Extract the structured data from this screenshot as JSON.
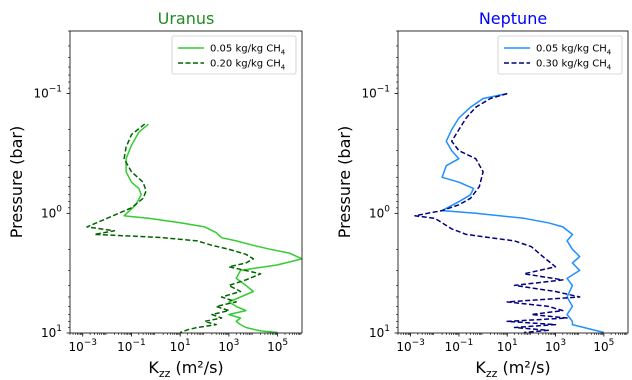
{
  "chart_data": [
    {
      "type": "line",
      "title": "Uranus",
      "title_color": "#228b22",
      "xlabel": "K",
      "xlabel_sub": "zz",
      "xlabel_unit": " (m²/s)",
      "ylabel": "Pressure (bar)",
      "x_scale": "log",
      "y_scale": "log",
      "y_inverted": true,
      "xlim": [
        0.0003,
        1000000
      ],
      "ylim": [
        10,
        0.03
      ],
      "x_ticks": [
        {
          "value": 0.001,
          "base": "10",
          "exp": "−3"
        },
        {
          "value": 0.1,
          "base": "10",
          "exp": "−1"
        },
        {
          "value": 10,
          "base": "10",
          "exp": "1"
        },
        {
          "value": 1000,
          "base": "10",
          "exp": "3"
        },
        {
          "value": 100000,
          "base": "10",
          "exp": "5"
        }
      ],
      "y_ticks": [
        {
          "value": 0.1,
          "base": "10",
          "exp": "−1"
        },
        {
          "value": 1,
          "base": "10",
          "exp": "0"
        },
        {
          "value": 10,
          "base": "10",
          "exp": "1"
        }
      ],
      "legend_position": "top-right",
      "series": [
        {
          "name": "0.05 kg/kg CH",
          "name_sub": "4",
          "color": "#32cd32",
          "dash": "solid",
          "points": [
            [
              0.5,
              0.18
            ],
            [
              0.2,
              0.21
            ],
            [
              0.1,
              0.27
            ],
            [
              0.06,
              0.35
            ],
            [
              0.06,
              0.45
            ],
            [
              0.1,
              0.55
            ],
            [
              0.2,
              0.62
            ],
            [
              0.25,
              0.7
            ],
            [
              0.15,
              0.85
            ],
            [
              0.05,
              1.05
            ],
            [
              0.5,
              1.1
            ],
            [
              10,
              1.2
            ],
            [
              100,
              1.3
            ],
            [
              300,
              1.45
            ],
            [
              500,
              1.6
            ],
            [
              2000,
              1.7
            ],
            [
              10000,
              1.85
            ],
            [
              50000,
              2.0
            ],
            [
              300000,
              2.15
            ],
            [
              1000000,
              2.4
            ],
            [
              100000,
              2.7
            ],
            [
              3000,
              3.0
            ],
            [
              2000,
              3.5
            ],
            [
              5000,
              4.0
            ],
            [
              10000,
              4.5
            ],
            [
              3000,
              5.0
            ],
            [
              1000,
              5.5
            ],
            [
              2000,
              6.0
            ],
            [
              5000,
              6.5
            ],
            [
              1000,
              7.0
            ],
            [
              3000,
              7.5
            ],
            [
              2000,
              8.0
            ],
            [
              3000,
              8.5
            ],
            [
              5000,
              9.0
            ],
            [
              20000,
              9.6
            ],
            [
              100000,
              9.9
            ]
          ]
        },
        {
          "name": "0.20 kg/kg CH",
          "name_sub": "4",
          "color": "#006400",
          "dash": "dashed",
          "points": [
            [
              0.35,
              0.18
            ],
            [
              0.1,
              0.22
            ],
            [
              0.06,
              0.28
            ],
            [
              0.05,
              0.35
            ],
            [
              0.1,
              0.45
            ],
            [
              0.3,
              0.55
            ],
            [
              0.4,
              0.65
            ],
            [
              0.3,
              0.75
            ],
            [
              0.1,
              0.9
            ],
            [
              0.01,
              1.1
            ],
            [
              0.0015,
              1.3
            ],
            [
              0.02,
              1.4
            ],
            [
              0.003,
              1.5
            ],
            [
              0.1,
              1.55
            ],
            [
              2,
              1.6
            ],
            [
              50,
              1.7
            ],
            [
              200,
              1.85
            ],
            [
              1000,
              2.0
            ],
            [
              5000,
              2.2
            ],
            [
              10000,
              2.4
            ],
            [
              5000,
              2.6
            ],
            [
              1000,
              2.8
            ],
            [
              20000,
              3.2
            ],
            [
              5000,
              3.6
            ],
            [
              1000,
              4.0
            ],
            [
              3000,
              4.5
            ],
            [
              500,
              5.0
            ],
            [
              2000,
              5.5
            ],
            [
              300,
              6.0
            ],
            [
              1000,
              6.5
            ],
            [
              200,
              7.0
            ],
            [
              500,
              7.5
            ],
            [
              100,
              8.0
            ],
            [
              300,
              8.5
            ],
            [
              50,
              9.0
            ],
            [
              20,
              9.4
            ],
            [
              10,
              9.9
            ]
          ]
        }
      ]
    },
    {
      "type": "line",
      "title": "Neptune",
      "title_color": "#0000ff",
      "xlabel": "K",
      "xlabel_sub": "zz",
      "xlabel_unit": " (m²/s)",
      "ylabel": "Pressure (bar)",
      "x_scale": "log",
      "y_scale": "log",
      "y_inverted": true,
      "xlim": [
        0.0003,
        1000000
      ],
      "ylim": [
        10,
        0.03
      ],
      "x_ticks": [
        {
          "value": 0.001,
          "base": "10",
          "exp": "−3"
        },
        {
          "value": 0.1,
          "base": "10",
          "exp": "−1"
        },
        {
          "value": 10,
          "base": "10",
          "exp": "1"
        },
        {
          "value": 1000,
          "base": "10",
          "exp": "3"
        },
        {
          "value": 100000,
          "base": "10",
          "exp": "5"
        }
      ],
      "y_ticks": [
        {
          "value": 0.1,
          "base": "10",
          "exp": "−1"
        },
        {
          "value": 1,
          "base": "10",
          "exp": "0"
        },
        {
          "value": 10,
          "base": "10",
          "exp": "1"
        }
      ],
      "legend_position": "top-right",
      "series": [
        {
          "name": "0.05 kg/kg CH",
          "name_sub": "4",
          "color": "#1e90ff",
          "dash": "solid",
          "points": [
            [
              10,
              0.1
            ],
            [
              1,
              0.11
            ],
            [
              0.3,
              0.13
            ],
            [
              0.1,
              0.16
            ],
            [
              0.05,
              0.2
            ],
            [
              0.03,
              0.25
            ],
            [
              0.05,
              0.3
            ],
            [
              0.1,
              0.35
            ],
            [
              0.03,
              0.4
            ],
            [
              0.02,
              0.5
            ],
            [
              0.1,
              0.55
            ],
            [
              0.4,
              0.62
            ],
            [
              0.3,
              0.7
            ],
            [
              0.1,
              0.8
            ],
            [
              0.02,
              0.95
            ],
            [
              0.5,
              1.0
            ],
            [
              50,
              1.1
            ],
            [
              500,
              1.2
            ],
            [
              2000,
              1.3
            ],
            [
              5000,
              1.5
            ],
            [
              3000,
              1.7
            ],
            [
              5000,
              2.0
            ],
            [
              10000,
              2.3
            ],
            [
              5000,
              2.6
            ],
            [
              10000,
              3.0
            ],
            [
              3000,
              3.5
            ],
            [
              5000,
              4.0
            ],
            [
              3000,
              5.0
            ],
            [
              5000,
              6.0
            ],
            [
              3000,
              7.0
            ],
            [
              5000,
              8.0
            ],
            [
              5000,
              8.5
            ],
            [
              100000,
              9.9
            ]
          ]
        },
        {
          "name": "0.30 kg/kg CH",
          "name_sub": "4",
          "color": "#000080",
          "dash": "dashed",
          "points": [
            [
              10,
              0.1
            ],
            [
              2,
              0.11
            ],
            [
              0.5,
              0.13
            ],
            [
              0.2,
              0.16
            ],
            [
              0.1,
              0.2
            ],
            [
              0.05,
              0.25
            ],
            [
              0.1,
              0.3
            ],
            [
              0.5,
              0.35
            ],
            [
              1,
              0.45
            ],
            [
              0.7,
              0.6
            ],
            [
              0.3,
              0.75
            ],
            [
              0.1,
              0.85
            ],
            [
              0.02,
              0.95
            ],
            [
              0.005,
              1.0
            ],
            [
              0.0015,
              1.05
            ],
            [
              0.01,
              1.1
            ],
            [
              0.02,
              1.2
            ],
            [
              0.05,
              1.35
            ],
            [
              0.2,
              1.5
            ],
            [
              2,
              1.6
            ],
            [
              20,
              1.7
            ],
            [
              100,
              1.9
            ],
            [
              300,
              2.3
            ],
            [
              1000,
              2.8
            ],
            [
              50,
              3.2
            ],
            [
              2000,
              3.6
            ],
            [
              20,
              4.0
            ],
            [
              1000,
              4.5
            ],
            [
              10000,
              5.0
            ],
            [
              10,
              5.5
            ],
            [
              500,
              6.0
            ],
            [
              2000,
              6.5
            ],
            [
              100,
              7.0
            ],
            [
              3000,
              7.5
            ],
            [
              10,
              8.0
            ],
            [
              1000,
              8.5
            ],
            [
              20,
              9.0
            ],
            [
              500,
              9.5
            ],
            [
              50,
              9.9
            ]
          ]
        }
      ]
    }
  ]
}
